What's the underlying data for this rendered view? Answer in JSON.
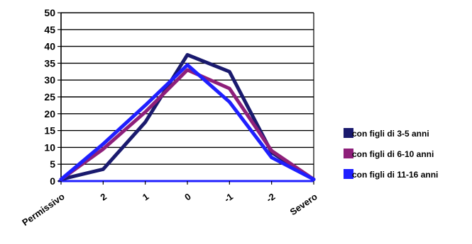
{
  "chart_data": {
    "type": "line",
    "title": "",
    "xlabel": "",
    "ylabel": "",
    "categories": [
      "Permissivo",
      "2",
      "1",
      "0",
      "-1",
      "-2",
      "Severo"
    ],
    "ylim": [
      0,
      50
    ],
    "yticks": [
      0,
      5,
      10,
      15,
      20,
      25,
      30,
      35,
      40,
      45,
      50
    ],
    "grid": true,
    "legend_position": "right",
    "series": [
      {
        "name": "con figli di 3-5 anni",
        "color": "#1a1a6e",
        "values": [
          0.5,
          3.5,
          17.5,
          37.5,
          32.5,
          8.5,
          0.5
        ]
      },
      {
        "name": "con figli di 6-10 anni",
        "color": "#8e1f7a",
        "values": [
          0.5,
          9.5,
          20.5,
          33,
          27.5,
          9,
          0.5
        ]
      },
      {
        "name": "con figli di 11-16 anni",
        "color": "#1f1fff",
        "values": [
          0.5,
          11,
          22.5,
          34.5,
          23.5,
          7,
          0.5
        ]
      }
    ]
  }
}
